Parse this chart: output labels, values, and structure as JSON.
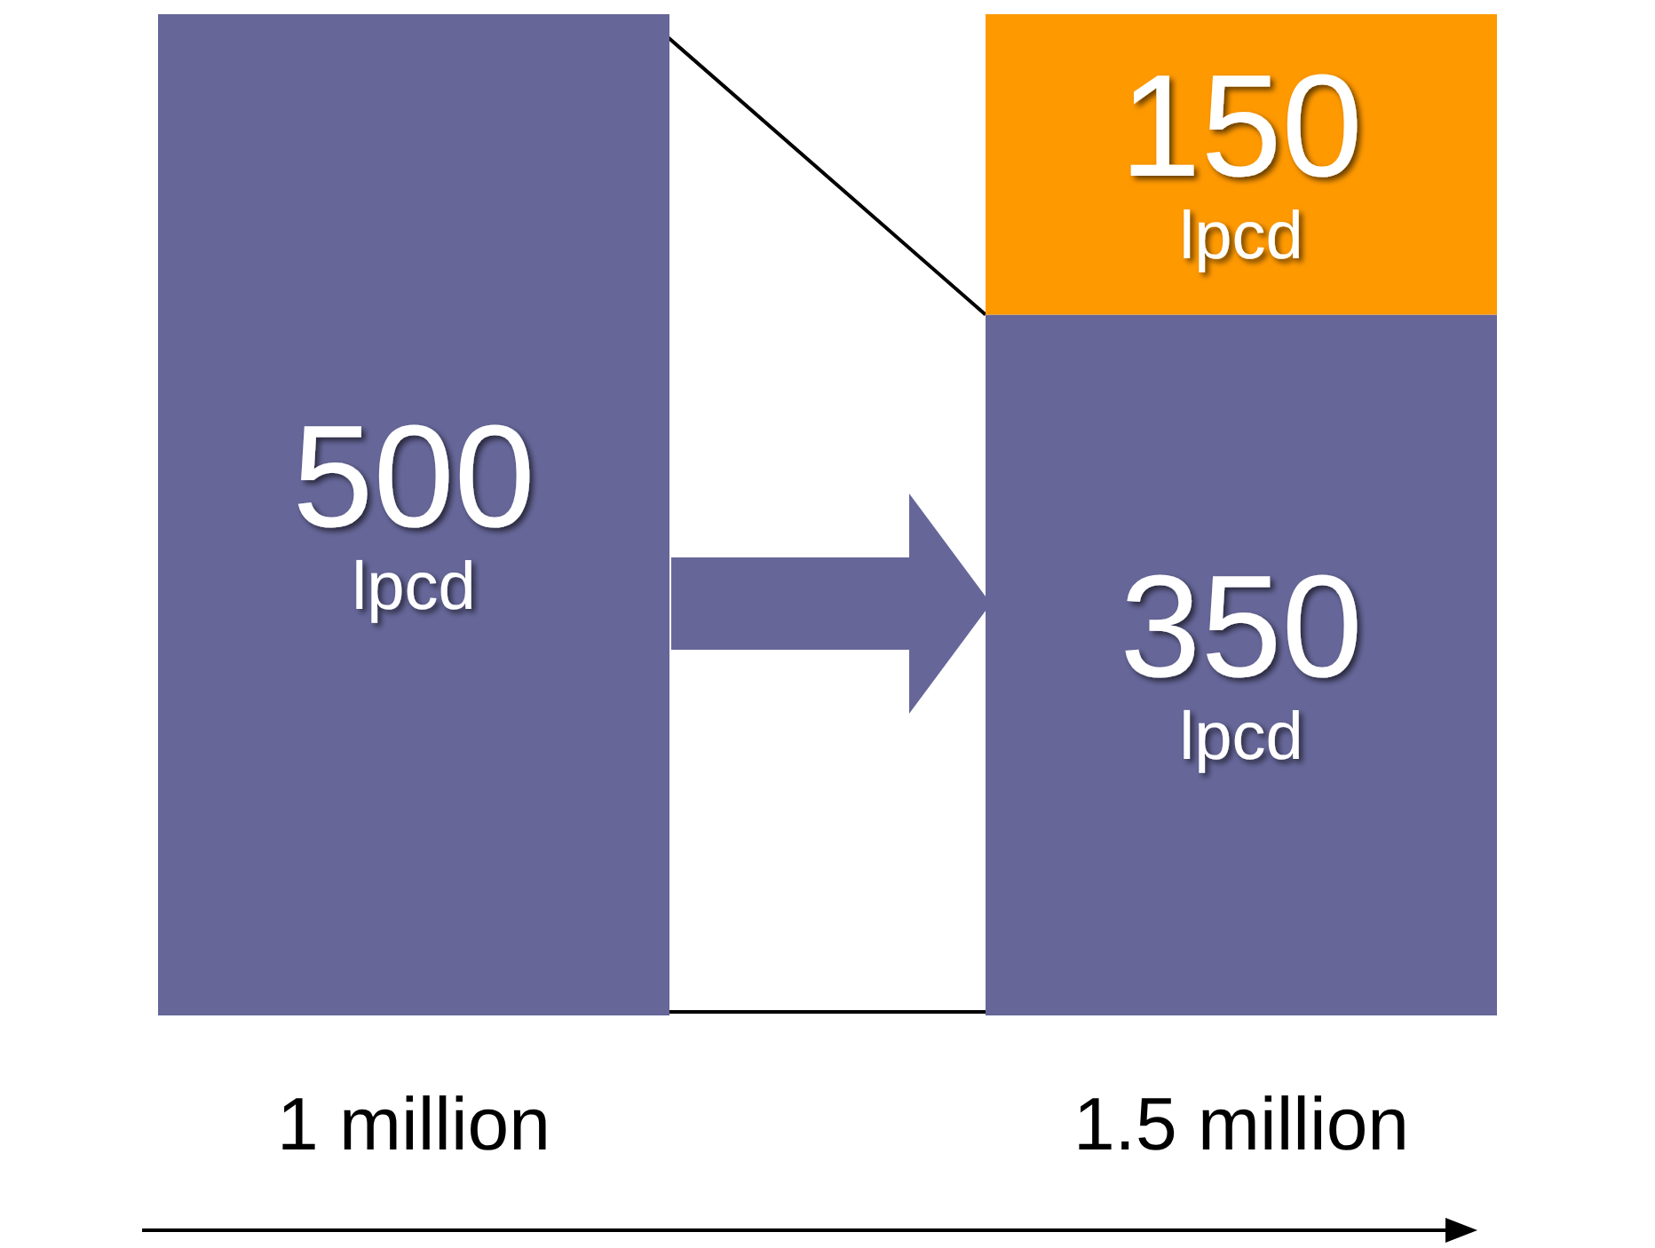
{
  "chart_data": {
    "type": "bar",
    "stacked": true,
    "categories": [
      "1 million",
      "1.5 million"
    ],
    "series": [
      {
        "color": "#666699",
        "values": [
          500,
          350
        ],
        "value_labels": [
          "500 lpcd",
          "350 lpcd"
        ]
      },
      {
        "color": "#ff9900",
        "values": [
          null,
          150
        ],
        "value_labels": [
          null,
          "150 lpcd"
        ]
      }
    ],
    "tick_labels": "x",
    "grid": false
  }
}
